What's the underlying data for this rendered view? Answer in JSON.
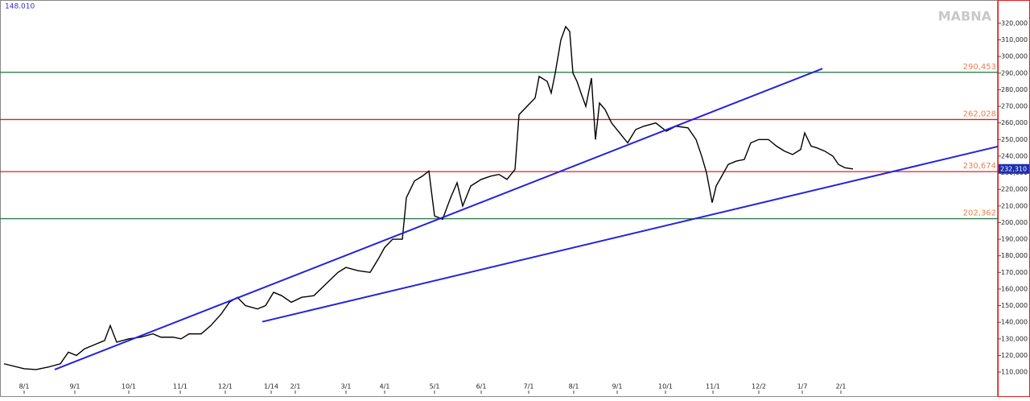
{
  "chart_data": {
    "type": "line",
    "header": "148.010",
    "watermark": "MABNA",
    "color": "#000000",
    "x": [
      5,
      30,
      45,
      60,
      75,
      85,
      95,
      105,
      120,
      130,
      137,
      145,
      160,
      175,
      190,
      200,
      215,
      225,
      235,
      250,
      262,
      275,
      285,
      295,
      305,
      320,
      330,
      340,
      350,
      362,
      375,
      390,
      405,
      420,
      430,
      445,
      460,
      470,
      478,
      488,
      500,
      505,
      515,
      525,
      533,
      540,
      550,
      560,
      568,
      575,
      585,
      598,
      610,
      620,
      630,
      640,
      645,
      655,
      665,
      670,
      680,
      685,
      690,
      697,
      703,
      708,
      712,
      717,
      722,
      728,
      735,
      740,
      745,
      752,
      760,
      770,
      780,
      790,
      800,
      815,
      828,
      840,
      855,
      865,
      872,
      878,
      885,
      890,
      897,
      905,
      915,
      925,
      933,
      943,
      955,
      965,
      975,
      985,
      995,
      1000,
      1008,
      1015,
      1025,
      1035,
      1042,
      1050,
      1060
    ],
    "values": [
      115000,
      112000,
      111500,
      113000,
      115000,
      122000,
      120000,
      124000,
      127000,
      129000,
      138000,
      128000,
      130000,
      131000,
      133000,
      131000,
      131000,
      130000,
      133000,
      133000,
      138000,
      145000,
      152000,
      155000,
      150000,
      148000,
      150000,
      158000,
      156000,
      152000,
      155000,
      156000,
      163000,
      170000,
      173000,
      171000,
      170000,
      178000,
      185000,
      190000,
      190000,
      215000,
      225000,
      228000,
      231000,
      204000,
      202000,
      215000,
      224000,
      210000,
      222000,
      226000,
      228000,
      229000,
      226000,
      232000,
      265000,
      270000,
      275000,
      288000,
      285000,
      278000,
      290000,
      310000,
      318000,
      315000,
      290000,
      285000,
      278000,
      270000,
      287000,
      250000,
      272000,
      268000,
      260000,
      254000,
      248000,
      256000,
      258000,
      260000,
      255000,
      258000,
      257000,
      250000,
      240000,
      230000,
      212000,
      222000,
      228000,
      235000,
      237000,
      238000,
      248000,
      250000,
      250000,
      246000,
      243000,
      241000,
      244000,
      254000,
      246000,
      245000,
      243000,
      240000,
      235000,
      233000,
      232310
    ],
    "xlim": [
      0,
      1240
    ],
    "ylim": [
      95000,
      334000
    ],
    "xticks": [
      {
        "value": 30,
        "label": "8/1"
      },
      {
        "value": 93,
        "label": "9/1"
      },
      {
        "value": 160,
        "label": "10/1"
      },
      {
        "value": 224,
        "label": "11/1"
      },
      {
        "value": 280,
        "label": "12/1"
      },
      {
        "value": 337,
        "label": "1/14"
      },
      {
        "value": 367,
        "label": "2/1"
      },
      {
        "value": 430,
        "label": "3/1"
      },
      {
        "value": 478,
        "label": "4/1"
      },
      {
        "value": 540,
        "label": "5/1"
      },
      {
        "value": 598,
        "label": "6/1"
      },
      {
        "value": 657,
        "label": "7/1"
      },
      {
        "value": 713,
        "label": "8/1"
      },
      {
        "value": 767,
        "label": "9/1"
      },
      {
        "value": 827,
        "label": "10/1"
      },
      {
        "value": 886,
        "label": "11/1"
      },
      {
        "value": 943,
        "label": "12/2"
      },
      {
        "value": 997,
        "label": "1/7"
      },
      {
        "value": 1045,
        "label": "2/1"
      }
    ],
    "yticks": [
      {
        "value": 110000,
        "label": "110,000"
      },
      {
        "value": 120000,
        "label": "120,000"
      },
      {
        "value": 130000,
        "label": "130,000"
      },
      {
        "value": 140000,
        "label": "140,000"
      },
      {
        "value": 150000,
        "label": "150,000"
      },
      {
        "value": 160000,
        "label": "160,000"
      },
      {
        "value": 170000,
        "label": "170,000"
      },
      {
        "value": 180000,
        "label": "180,000"
      },
      {
        "value": 190000,
        "label": "190,000"
      },
      {
        "value": 200000,
        "label": "200,000"
      },
      {
        "value": 210000,
        "label": "210,000"
      },
      {
        "value": 220000,
        "label": "220,000"
      },
      {
        "value": 230000,
        "label": "230,000"
      },
      {
        "value": 240000,
        "label": "240,000"
      },
      {
        "value": 250000,
        "label": "250,000"
      },
      {
        "value": 260000,
        "label": "260,000"
      },
      {
        "value": 270000,
        "label": "270,000"
      },
      {
        "value": 280000,
        "label": "280,000"
      },
      {
        "value": 290000,
        "label": "290,000"
      },
      {
        "value": 300000,
        "label": "300,000"
      },
      {
        "value": 310000,
        "label": "310,000"
      },
      {
        "value": 320000,
        "label": "320,000"
      }
    ],
    "levels": [
      {
        "value": 290453,
        "label": "290,453",
        "color": "#2e7d4f"
      },
      {
        "value": 262028,
        "label": "262,028",
        "color": "#e02020"
      },
      {
        "value": 230674,
        "label": "230,674",
        "color": "#e02020"
      },
      {
        "value": 202362,
        "label": "202,362",
        "color": "#2e7d4f"
      }
    ],
    "last_price": {
      "value": 232310,
      "label": "232,310"
    },
    "trendlines": [
      {
        "x": [
          68,
          1022
        ],
        "y": [
          111500,
          292700
        ],
        "color": "#2222dd"
      },
      {
        "x": [
          326,
          1240
        ],
        "y": [
          140300,
          245800
        ],
        "color": "#2222dd"
      }
    ]
  }
}
